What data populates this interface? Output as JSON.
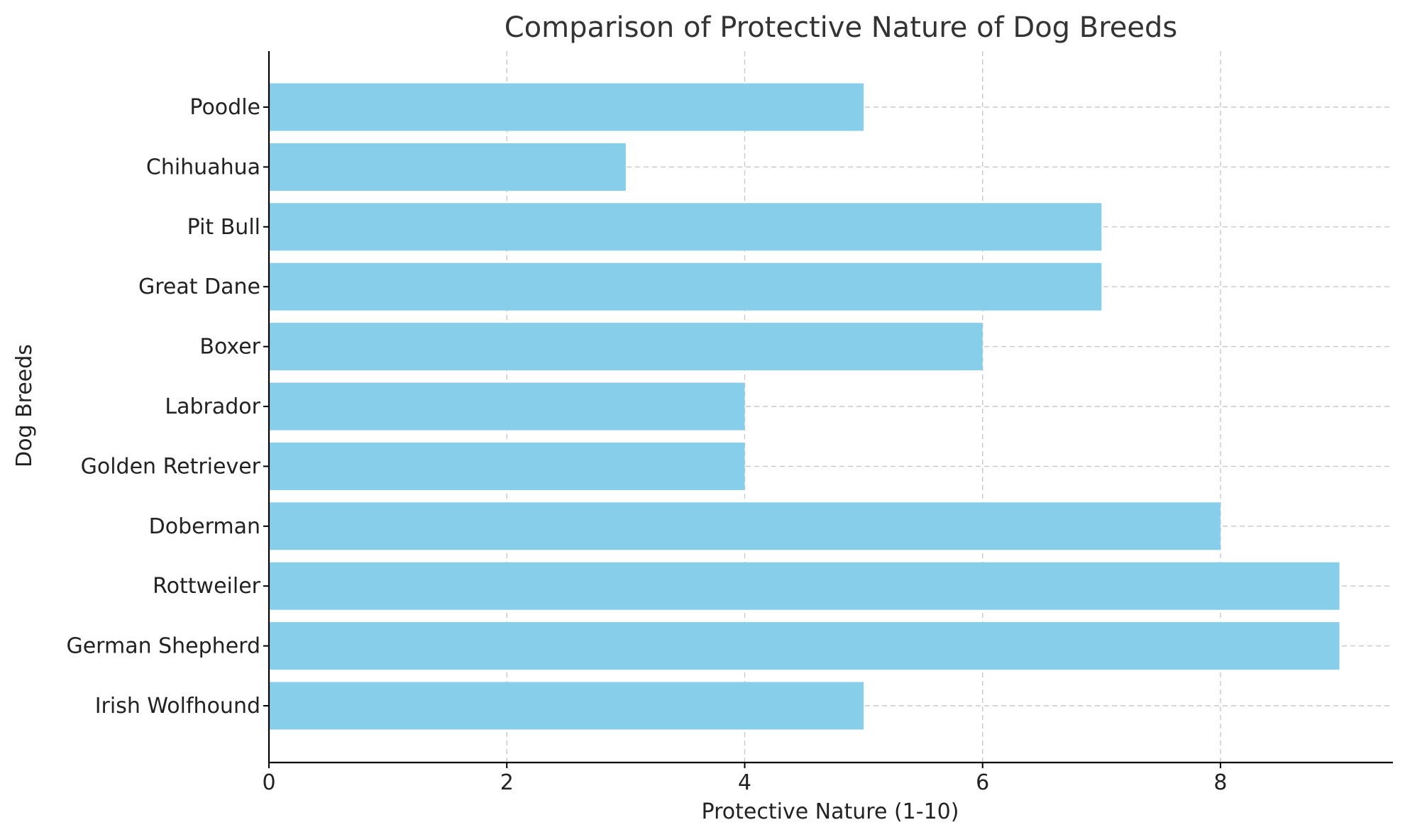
{
  "chart_data": {
    "type": "bar",
    "orientation": "horizontal",
    "title": "Comparison of Protective Nature of Dog Breeds",
    "xlabel": "Protective Nature (1-10)",
    "ylabel": "Dog Breeds",
    "categories": [
      "Irish Wolfhound",
      "German Shepherd",
      "Rottweiler",
      "Doberman",
      "Golden Retriever",
      "Labrador",
      "Boxer",
      "Great Dane",
      "Pit Bull",
      "Chihuahua",
      "Poodle"
    ],
    "values": [
      5,
      9,
      9,
      8,
      4,
      4,
      6,
      7,
      7,
      3,
      5
    ],
    "xlim": [
      0,
      9.45
    ],
    "xticks": [
      0,
      2,
      4,
      6,
      8
    ],
    "grid": true,
    "bar_color": "#87ceeb"
  }
}
